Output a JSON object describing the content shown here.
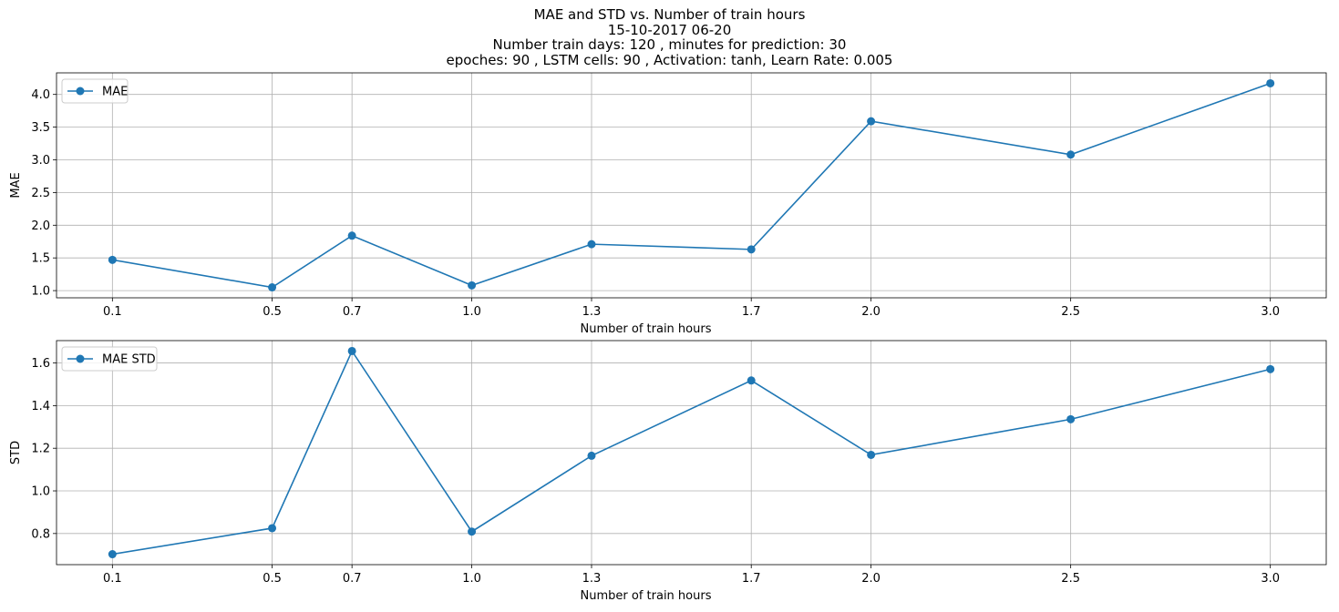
{
  "figure": {
    "title_lines": [
      "MAE and STD vs. Number of train hours",
      "15-10-2017 06-20",
      "Number train days: 120 , minutes for prediction: 30",
      "epoches: 90 , LSTM cells: 90 , Activation: tanh, Learn Rate: 0.005"
    ]
  },
  "colors": {
    "series": "#1f77b4",
    "grid": "#b0b0b0",
    "axes": "#000000"
  },
  "chart_data": [
    {
      "type": "line",
      "xlabel": "Number of train hours",
      "ylabel": "MAE",
      "x": [
        0.1,
        0.5,
        0.7,
        1.0,
        1.3,
        1.7,
        2.0,
        2.5,
        3.0
      ],
      "xticks": [
        "0.1",
        "0.5",
        "0.7",
        "1.0",
        "1.3",
        "1.7",
        "2.0",
        "2.5",
        "3.0"
      ],
      "xlim": [
        -0.04,
        3.14
      ],
      "ylim": [
        0.89,
        4.33
      ],
      "yticks": [
        1.0,
        1.5,
        2.0,
        2.5,
        3.0,
        3.5,
        4.0
      ],
      "ytick_labels": [
        "1.0",
        "1.5",
        "2.0",
        "2.5",
        "3.0",
        "3.5",
        "4.0"
      ],
      "grid": true,
      "legend": "upper-left",
      "series": [
        {
          "name": "MAE",
          "values": [
            1.47,
            1.05,
            1.84,
            1.08,
            1.71,
            1.63,
            3.59,
            3.08,
            4.17
          ]
        }
      ]
    },
    {
      "type": "line",
      "xlabel": "Number of train hours",
      "ylabel": "STD",
      "x": [
        0.1,
        0.5,
        0.7,
        1.0,
        1.3,
        1.7,
        2.0,
        2.5,
        3.0
      ],
      "xticks": [
        "0.1",
        "0.5",
        "0.7",
        "1.0",
        "1.3",
        "1.7",
        "2.0",
        "2.5",
        "3.0"
      ],
      "xlim": [
        -0.04,
        3.14
      ],
      "ylim": [
        0.654,
        1.705
      ],
      "yticks": [
        0.8,
        1.0,
        1.2,
        1.4,
        1.6
      ],
      "ytick_labels": [
        "0.8",
        "1.0",
        "1.2",
        "1.4",
        "1.6"
      ],
      "grid": true,
      "legend": "upper-left",
      "series": [
        {
          "name": "MAE STD",
          "values": [
            0.703,
            0.825,
            1.656,
            0.809,
            1.165,
            1.518,
            1.169,
            1.336,
            1.571
          ]
        }
      ]
    }
  ]
}
